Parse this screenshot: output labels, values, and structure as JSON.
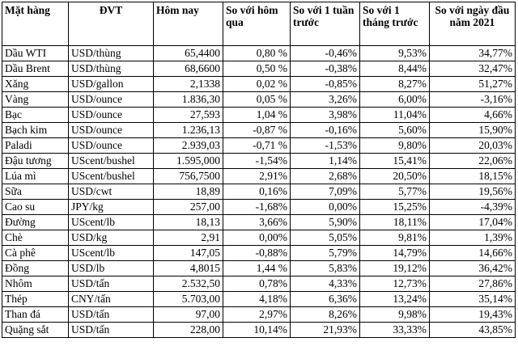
{
  "table": {
    "headers": [
      "Mặt hàng",
      "ĐVT",
      "Hôm nay",
      "So với hôm qua",
      "So với 1 tuần trước",
      "So với 1 tháng trước",
      "So với ngày đầu năm 2021"
    ],
    "rows": [
      [
        "Dầu WTI",
        "USD/thùng",
        "65,4400",
        "0,80 %",
        "-0,46%",
        "9,53%",
        "34,77%"
      ],
      [
        "Dầu Brent",
        "USD/thùng",
        "68,6600",
        "0,50 %",
        "-0,38%",
        "8,44%",
        "32,47%"
      ],
      [
        "Xăng",
        "USD/gallon",
        "2,1338",
        "0,02 %",
        "-0,85%",
        "8,27%",
        "51,27%"
      ],
      [
        "Vàng",
        "USD/ounce",
        "1.836,30",
        "0,05 %",
        "3,26%",
        "6,00%",
        "-3,16%"
      ],
      [
        "Bạc",
        "USD/ounce",
        "27,593",
        "1,04 %",
        "3,98%",
        "11,04%",
        "4,66%"
      ],
      [
        "Bạch kim",
        "USD/ounce",
        "1.236,13",
        "-0,87 %",
        "-0,16%",
        "5,60%",
        "15,90%"
      ],
      [
        "Paladi",
        "USD/ounce",
        "2.939,03",
        "-0,71 %",
        "-1,53%",
        "9,80%",
        "20,03%"
      ],
      [
        "Đậu tương",
        "UScent/bushel",
        "1.595,000",
        "-1,54%",
        "1,14%",
        "15,41%",
        "22,06%"
      ],
      [
        "Lúa mì",
        "UScent/bushel",
        "756,7500",
        "2,91%",
        "2,68%",
        "20,50%",
        "18,15%"
      ],
      [
        "Sữa",
        "USD/cwt",
        "18,89",
        "0,16%",
        "7,09%",
        "5,77%",
        "19,56%"
      ],
      [
        "Cao su",
        "JPY/kg",
        "257,00",
        "-1,68%",
        "0,00%",
        "15,25%",
        "-4,39%"
      ],
      [
        "Đường",
        "UScent/lb",
        "18,13",
        "3,66%",
        "5,90%",
        "18,11%",
        "17,04%"
      ],
      [
        "Chè",
        "USD/kg",
        "2,91",
        "0,00%",
        "5,05%",
        "9,81%",
        "1,39%"
      ],
      [
        "Cà phê",
        "UScent/lb",
        "147,05",
        "-0,88%",
        "5,79%",
        "14,79%",
        "14,66%"
      ],
      [
        "Đồng",
        "USD/lb",
        "4,8015",
        "1,44 %",
        "5,83%",
        "19,12%",
        "36,42%"
      ],
      [
        "Nhôm",
        "USD/tấn",
        "2.532,50",
        "0,78%",
        "4,33%",
        "12,73%",
        "27,86%"
      ],
      [
        "Thép",
        "CNY/tấn",
        "5.703,00",
        "4,18%",
        "6,36%",
        "13,24%",
        "35,14%"
      ],
      [
        "Than đá",
        "USD/tấn",
        "97,00",
        "2,97%",
        "8,26%",
        "9,98%",
        "19,43%"
      ],
      [
        "Quặng sắt",
        "USD/tấn",
        "228,00",
        "10,14%",
        "21,93%",
        "33,33%",
        "43,85%"
      ]
    ]
  }
}
